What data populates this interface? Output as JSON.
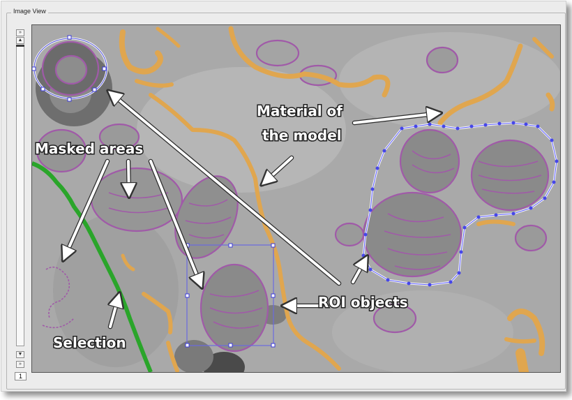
{
  "window": {
    "title": "Image View"
  },
  "scrollbar": {
    "top_button": "»",
    "up_button": "▲",
    "down_button": "▼",
    "bottom_button": "»"
  },
  "slice": {
    "value": "1"
  },
  "annotations": {
    "material": [
      "Material of",
      "the model"
    ],
    "masked": "Masked areas",
    "roi": "ROI objects",
    "selection": "Selection"
  },
  "colors": {
    "material": "#e0a64f",
    "mask": "#a05aa8",
    "roi": "#3b3bd8",
    "roi_handle": "#5555ff",
    "selection": "#2aa52a",
    "background": "#a8a8a8"
  },
  "icons": [
    "scroll-top-icon",
    "scroll-up-icon",
    "scroll-down-icon",
    "scroll-bottom-icon"
  ]
}
